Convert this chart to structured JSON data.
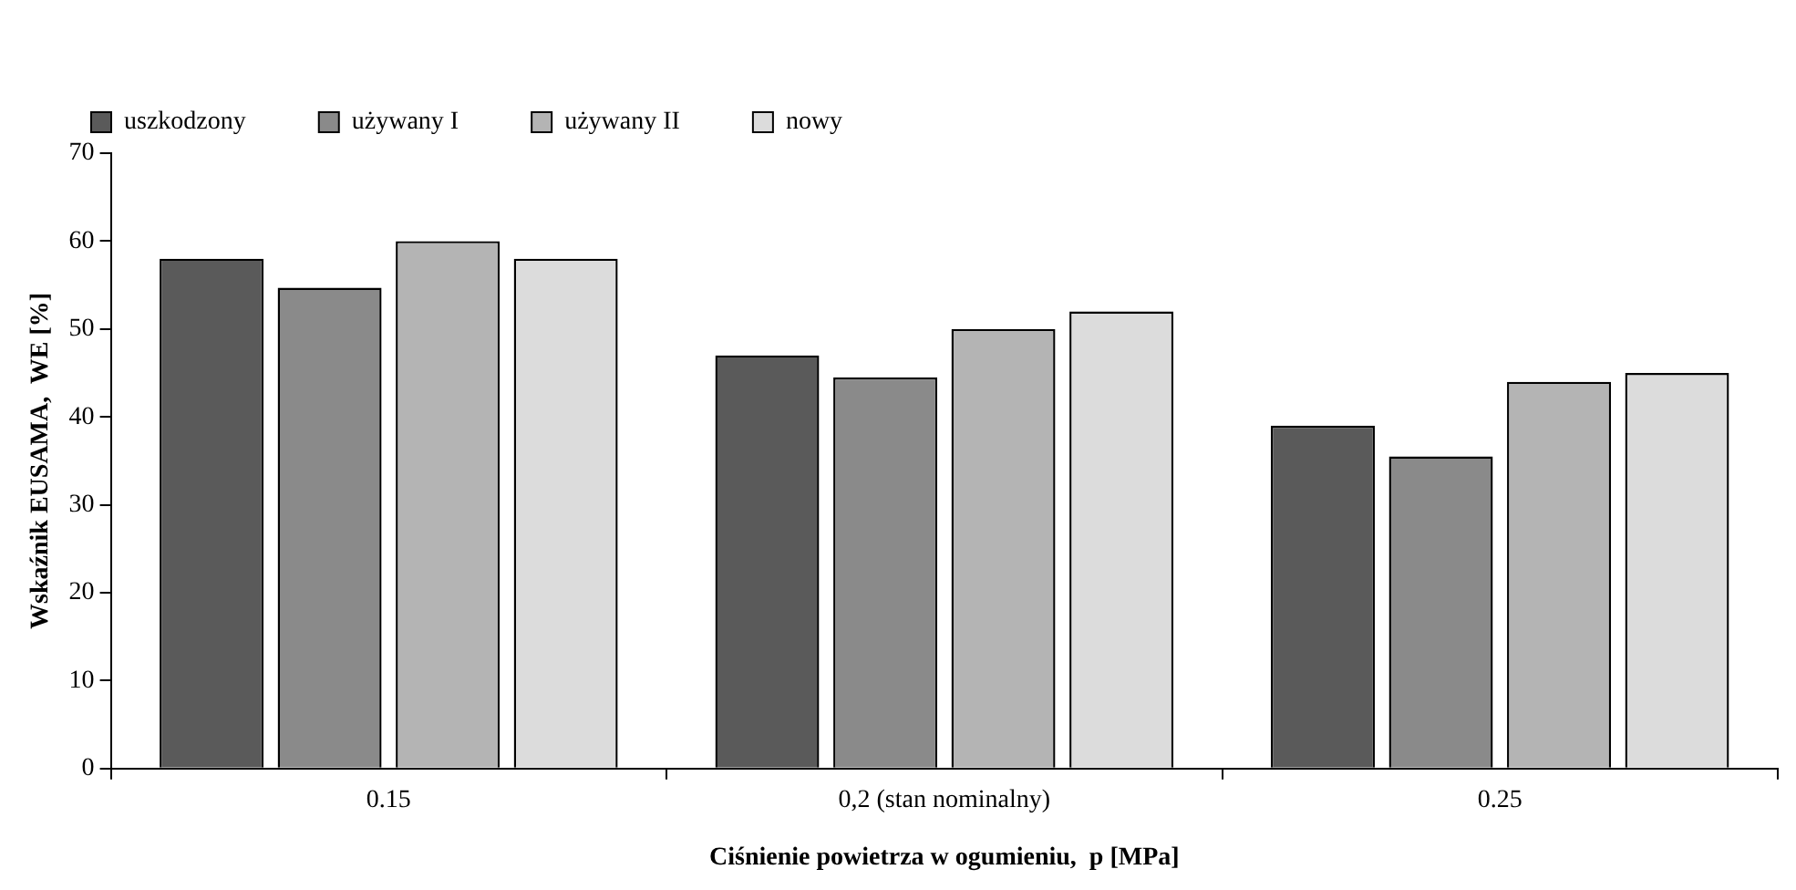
{
  "chart_data": {
    "type": "bar",
    "xlabel": "Ciśnienie powietrza w ogumieniu,  p [MPa]",
    "ylabel": "Wskaźnik EUSAMA,  WE [%]",
    "categories": [
      "0.15",
      "0,2 (stan nominalny)",
      "0.25"
    ],
    "series": [
      {
        "name": "uszkodzony",
        "color": "#5a5a5a",
        "values": [
          58,
          47,
          39
        ]
      },
      {
        "name": "używany I",
        "color": "#8a8a8a",
        "values": [
          54.7,
          44.5,
          35.5
        ]
      },
      {
        "name": "używany II",
        "color": "#b4b4b4",
        "values": [
          60,
          50,
          44
        ]
      },
      {
        "name": "nowy",
        "color": "#dcdcdc",
        "values": [
          58,
          52,
          45
        ]
      }
    ],
    "ylim": [
      0,
      70
    ],
    "yticks": [
      0,
      10,
      20,
      30,
      40,
      50,
      60,
      70
    ],
    "grid": false,
    "legend": "top left"
  }
}
